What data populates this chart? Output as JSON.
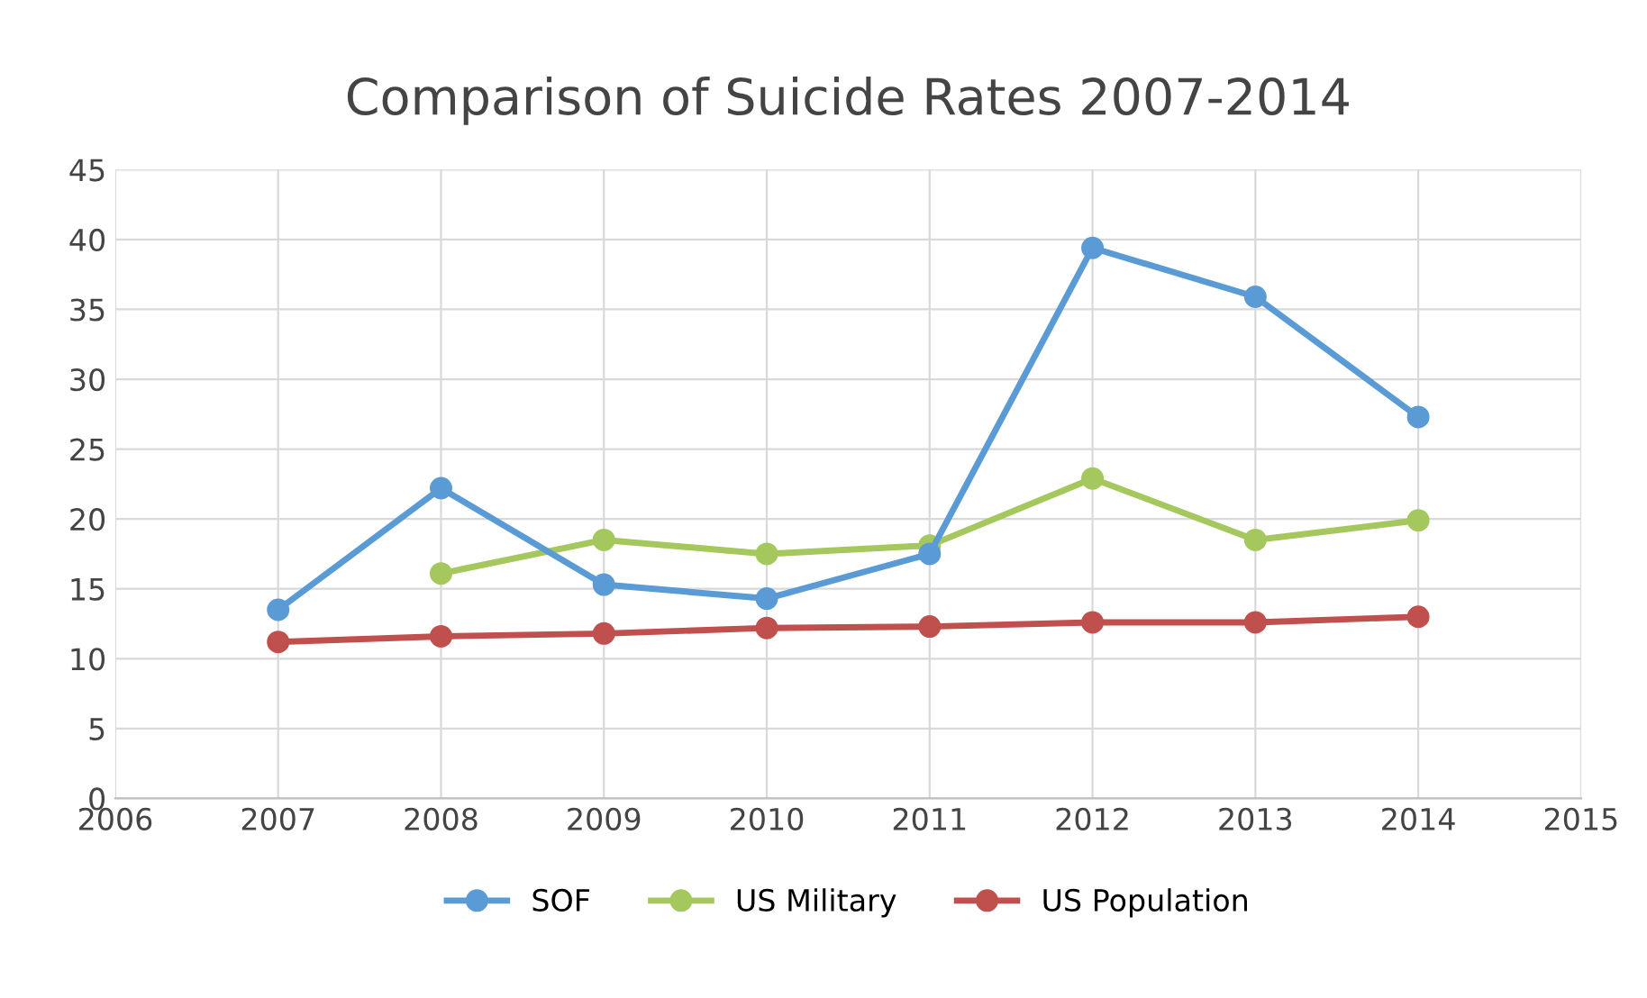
{
  "chart_data": {
    "type": "line",
    "title": "Comparison of Suicide Rates 2007-2014",
    "x": [
      2007,
      2008,
      2009,
      2010,
      2011,
      2012,
      2013,
      2014
    ],
    "series": [
      {
        "name": "SOF",
        "color": "#5b9bd5",
        "values": [
          13.5,
          22.2,
          15.3,
          14.3,
          17.5,
          39.4,
          35.9,
          27.3
        ]
      },
      {
        "name": "US Military",
        "color": "#a5c85e",
        "values": [
          null,
          16.1,
          18.5,
          17.5,
          18.1,
          22.9,
          18.5,
          19.9
        ]
      },
      {
        "name": "US Population",
        "color": "#c0504d",
        "values": [
          11.2,
          11.6,
          11.8,
          12.2,
          12.3,
          12.6,
          12.6,
          13.0
        ]
      }
    ],
    "xlim": [
      2006,
      2015
    ],
    "xticks": [
      2006,
      2007,
      2008,
      2009,
      2010,
      2011,
      2012,
      2013,
      2014,
      2015
    ],
    "ylim": [
      0,
      45
    ],
    "yticks": [
      0,
      5,
      10,
      15,
      20,
      25,
      30,
      35,
      40,
      45
    ],
    "grid": true,
    "legend": "bottom",
    "marker": "circle",
    "line_style": "solid"
  }
}
